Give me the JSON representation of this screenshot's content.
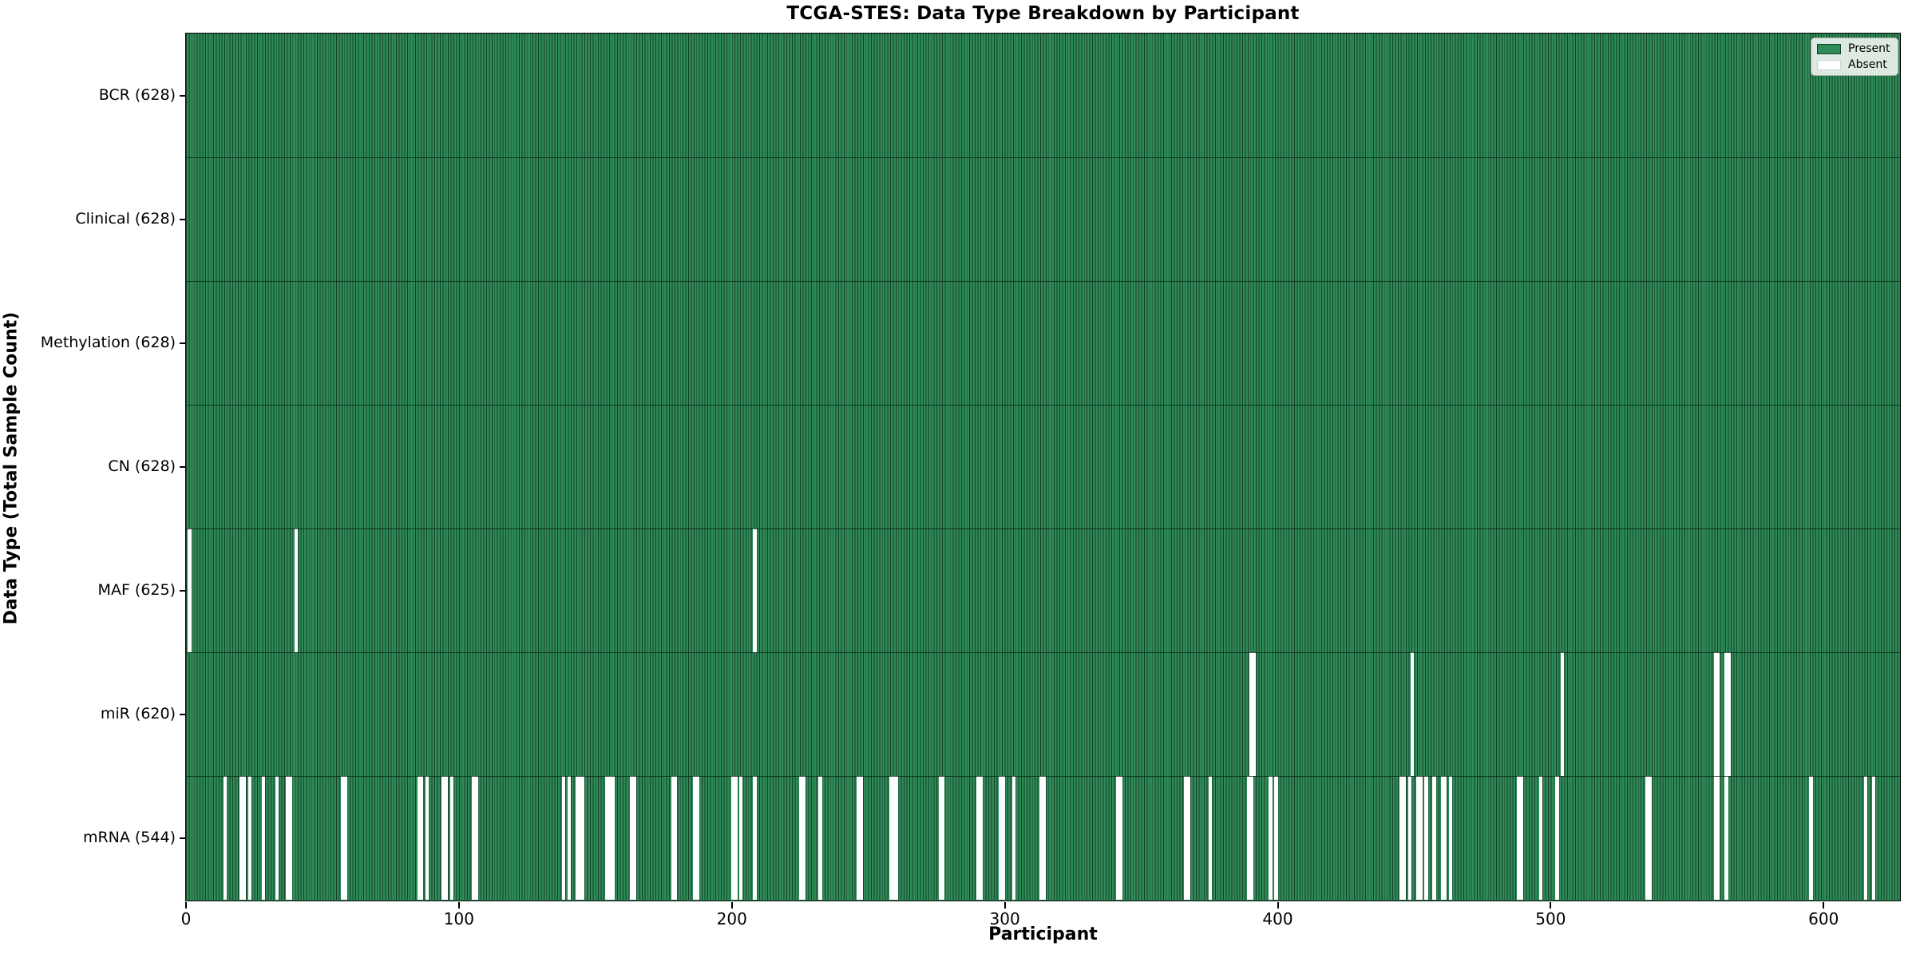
{
  "title": "TCGA-STES: Data Type Breakdown by Participant",
  "chart_data": {
    "type": "heatmap",
    "title": "TCGA-STES: Data Type Breakdown by Participant",
    "xlabel": "Participant",
    "ylabel": "Data Type (Total Sample Count)",
    "x_ticks": [
      0,
      100,
      200,
      300,
      400,
      500,
      600
    ],
    "x_range": [
      0,
      628
    ],
    "n_participants": 628,
    "grid": false,
    "legend_position": "upper right",
    "legend": [
      {
        "label": "Present",
        "color": "#2e8b57"
      },
      {
        "label": "Absent",
        "color": "#ffffff"
      }
    ],
    "colors": {
      "present_fill": "#2e8b57",
      "bar_edge": "#153f28",
      "absent_fill": "#ffffff",
      "axis": "#000000"
    },
    "rows": [
      {
        "label": "BCR (628)",
        "data_type": "BCR",
        "present_count": 628,
        "absent_count": 0,
        "absent_participants": []
      },
      {
        "label": "Clinical (628)",
        "data_type": "Clinical",
        "present_count": 628,
        "absent_count": 0,
        "absent_participants": []
      },
      {
        "label": "Methylation (628)",
        "data_type": "Methylation",
        "present_count": 628,
        "absent_count": 0,
        "absent_participants": []
      },
      {
        "label": "CN (628)",
        "data_type": "CN",
        "present_count": 628,
        "absent_count": 0,
        "absent_participants": []
      },
      {
        "label": "MAF (625)",
        "data_type": "MAF",
        "present_count": 625,
        "absent_count": 3,
        "absent_participants": [
          1,
          40,
          208
        ]
      },
      {
        "label": "miR (620)",
        "data_type": "miR",
        "present_count": 620,
        "absent_count": 8,
        "absent_participants": [
          390,
          391,
          449,
          504,
          560,
          561,
          564,
          565
        ]
      },
      {
        "label": "mRNA (544)",
        "data_type": "mRNA",
        "present_count": 544,
        "absent_count": 84,
        "absent_participants": [
          14,
          20,
          21,
          23,
          28,
          33,
          37,
          38,
          57,
          58,
          85,
          86,
          88,
          94,
          95,
          97,
          105,
          106,
          138,
          140,
          143,
          144,
          145,
          154,
          155,
          156,
          163,
          164,
          178,
          179,
          186,
          187,
          200,
          201,
          203,
          208,
          225,
          226,
          232,
          246,
          247,
          258,
          259,
          260,
          276,
          277,
          290,
          291,
          298,
          299,
          303,
          313,
          314,
          341,
          342,
          366,
          367,
          375,
          389,
          390,
          397,
          399,
          445,
          446,
          448,
          451,
          452,
          454,
          457,
          460,
          461,
          463,
          488,
          489,
          496,
          502,
          535,
          536,
          560,
          561,
          564,
          595,
          615,
          618
        ]
      }
    ]
  }
}
